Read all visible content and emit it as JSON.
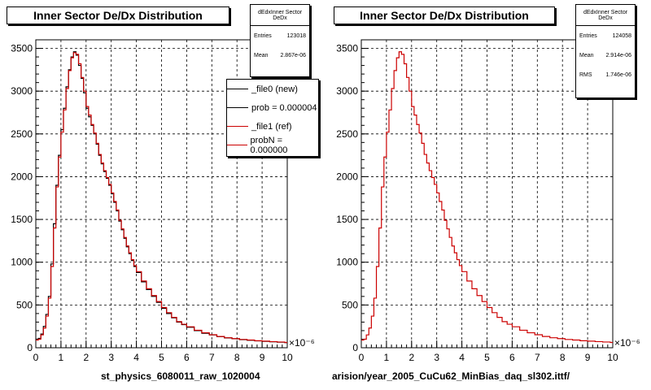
{
  "chart_data": [
    {
      "type": "bar",
      "title": "Inner Sector De/Dx Distribution",
      "xlabel": "st_physics_6080011_raw_1020004",
      "ylabel": "",
      "x_multiplier": "×10⁻⁶",
      "xlim": [
        0,
        10
      ],
      "ylim": [
        0,
        3600
      ],
      "xticks": [
        "0",
        "1",
        "2",
        "3",
        "4",
        "5",
        "6",
        "7",
        "8",
        "9",
        "10"
      ],
      "yticks": [
        "0",
        "500",
        "1000",
        "1500",
        "2000",
        "2500",
        "3000",
        "3500"
      ],
      "grid": true,
      "stats": {
        "name": "dEdxInner Sector DeDx",
        "rows": [
          {
            "label": "Entries",
            "value": "123018"
          },
          {
            "label": "Mean",
            "value": "2.867e-06"
          }
        ]
      },
      "legend": [
        {
          "label": "_file0 (new)",
          "color": "#000000"
        },
        {
          "label": "prob = 0.000004",
          "color": "#000000"
        },
        {
          "label": "_file1 (ref)",
          "color": "#cc0000"
        },
        {
          "label": "probN = 0.000000",
          "color": "#cc0000"
        }
      ],
      "series": [
        {
          "color": "#000000",
          "x": [
            0,
            0.1,
            0.2,
            0.3,
            0.4,
            0.5,
            0.6,
            0.7,
            0.8,
            0.9,
            1.0,
            1.1,
            1.2,
            1.3,
            1.4,
            1.5,
            1.6,
            1.7,
            1.8,
            1.9,
            2.0,
            2.1,
            2.2,
            2.3,
            2.4,
            2.5,
            2.6,
            2.7,
            2.8,
            2.9,
            3.0,
            3.1,
            3.2,
            3.3,
            3.4,
            3.5,
            3.6,
            3.7,
            3.8,
            3.9,
            4.0,
            4.2,
            4.4,
            4.6,
            4.8,
            5.0,
            5.2,
            5.4,
            5.6,
            5.8,
            6.0,
            6.3,
            6.6,
            6.9,
            7.2,
            7.5,
            7.8,
            8.1,
            8.4,
            8.7,
            9.0,
            9.3,
            9.6,
            9.9
          ],
          "values": [
            100,
            110,
            160,
            250,
            390,
            600,
            980,
            1450,
            1900,
            2250,
            2550,
            2800,
            3050,
            3250,
            3400,
            3460,
            3420,
            3300,
            3150,
            2980,
            2800,
            2700,
            2600,
            2500,
            2380,
            2250,
            2150,
            2060,
            1980,
            1900,
            1800,
            1700,
            1600,
            1480,
            1380,
            1280,
            1180,
            1100,
            1020,
            950,
            880,
            770,
            680,
            600,
            530,
            460,
            400,
            350,
            300,
            270,
            240,
            200,
            170,
            150,
            130,
            115,
            105,
            95,
            88,
            80,
            75,
            70,
            65,
            60
          ]
        },
        {
          "color": "#cc0000",
          "x": [
            0,
            0.1,
            0.2,
            0.3,
            0.4,
            0.5,
            0.6,
            0.7,
            0.8,
            0.9,
            1.0,
            1.1,
            1.2,
            1.3,
            1.4,
            1.5,
            1.6,
            1.7,
            1.8,
            1.9,
            2.0,
            2.1,
            2.2,
            2.3,
            2.4,
            2.5,
            2.6,
            2.7,
            2.8,
            2.9,
            3.0,
            3.1,
            3.2,
            3.3,
            3.4,
            3.5,
            3.6,
            3.7,
            3.8,
            3.9,
            4.0,
            4.2,
            4.4,
            4.6,
            4.8,
            5.0,
            5.2,
            5.4,
            5.6,
            5.8,
            6.0,
            6.3,
            6.6,
            6.9,
            7.2,
            7.5,
            7.8,
            8.1,
            8.4,
            8.7,
            9.0,
            9.3,
            9.6,
            9.9
          ],
          "values": [
            90,
            100,
            150,
            230,
            370,
            580,
            950,
            1400,
            1880,
            2230,
            2520,
            2780,
            3030,
            3240,
            3390,
            3450,
            3430,
            3320,
            3160,
            3000,
            2820,
            2720,
            2610,
            2510,
            2390,
            2260,
            2160,
            2070,
            1990,
            1910,
            1810,
            1710,
            1610,
            1490,
            1390,
            1290,
            1190,
            1110,
            1030,
            960,
            890,
            780,
            690,
            610,
            540,
            470,
            410,
            355,
            305,
            275,
            245,
            205,
            175,
            152,
            132,
            117,
            107,
            97,
            90,
            82,
            77,
            72,
            67,
            62
          ]
        }
      ]
    },
    {
      "type": "bar",
      "title": "Inner Sector De/Dx Distribution",
      "xlabel": "arision/year_2005_CuCu62_MinBias_daq_sl302.ittf/",
      "ylabel": "",
      "x_multiplier": "×10⁻⁶",
      "xlim": [
        0,
        10
      ],
      "ylim": [
        0,
        3600
      ],
      "xticks": [
        "0",
        "1",
        "2",
        "3",
        "4",
        "5",
        "6",
        "7",
        "8",
        "9",
        "10"
      ],
      "yticks": [
        "0",
        "500",
        "1000",
        "1500",
        "2000",
        "2500",
        "3000",
        "3500"
      ],
      "grid": true,
      "stats": {
        "name": "dEdxInner Sector DeDx",
        "rows": [
          {
            "label": "Entries",
            "value": "124058"
          },
          {
            "label": "Mean",
            "value": "2.914e-06"
          },
          {
            "label": "RMS",
            "value": "1.746e-06"
          }
        ]
      },
      "series": [
        {
          "color": "#cc0000",
          "x": [
            0,
            0.1,
            0.2,
            0.3,
            0.4,
            0.5,
            0.6,
            0.7,
            0.8,
            0.9,
            1.0,
            1.1,
            1.2,
            1.3,
            1.4,
            1.5,
            1.6,
            1.7,
            1.8,
            1.9,
            2.0,
            2.1,
            2.2,
            2.3,
            2.4,
            2.5,
            2.6,
            2.7,
            2.8,
            2.9,
            3.0,
            3.1,
            3.2,
            3.3,
            3.4,
            3.5,
            3.6,
            3.7,
            3.8,
            3.9,
            4.0,
            4.2,
            4.4,
            4.6,
            4.8,
            5.0,
            5.2,
            5.4,
            5.6,
            5.8,
            6.0,
            6.3,
            6.6,
            6.9,
            7.2,
            7.5,
            7.8,
            8.1,
            8.4,
            8.7,
            9.0,
            9.3,
            9.6,
            9.9
          ],
          "values": [
            90,
            100,
            150,
            230,
            370,
            580,
            950,
            1400,
            1880,
            2230,
            2520,
            2780,
            3030,
            3240,
            3390,
            3460,
            3430,
            3320,
            3160,
            3000,
            2820,
            2720,
            2610,
            2510,
            2390,
            2260,
            2160,
            2070,
            1990,
            1910,
            1810,
            1710,
            1610,
            1490,
            1390,
            1290,
            1190,
            1110,
            1030,
            960,
            890,
            780,
            690,
            610,
            540,
            470,
            410,
            355,
            305,
            275,
            245,
            205,
            175,
            152,
            132,
            117,
            107,
            97,
            90,
            82,
            77,
            72,
            67,
            62
          ]
        }
      ]
    }
  ]
}
